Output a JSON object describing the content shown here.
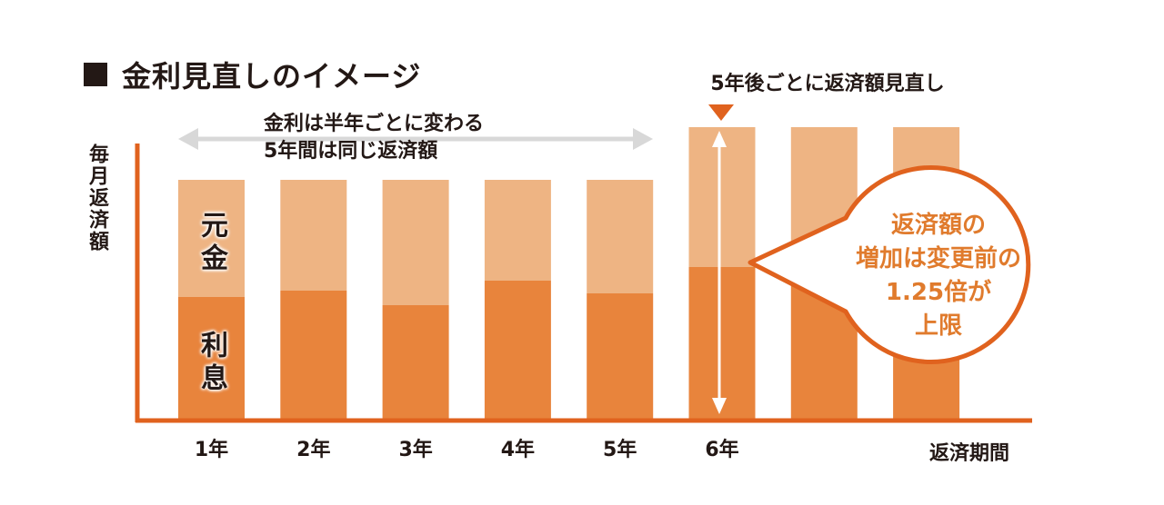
{
  "title": "金利見直しのイメージ",
  "chart_data": {
    "type": "bar",
    "stacked": true,
    "categories": [
      "1年",
      "2年",
      "3年",
      "4年",
      "5年",
      "6年",
      "",
      ""
    ],
    "series": [
      {
        "name": "利息",
        "values": [
          134,
          141,
          125,
          152,
          138,
          167,
          167,
          167
        ]
      },
      {
        "name": "元金",
        "values": [
          129,
          122,
          138,
          111,
          125,
          154,
          154,
          154
        ]
      }
    ],
    "ylabel": "毎月返済額",
    "xlabel": "返済期間",
    "ylim": [
      0,
      330
    ],
    "colors": {
      "interest": "#e8843c",
      "principal": "#eeb483",
      "axis": "#e0621e",
      "arrow": "#d8d8d8",
      "accent": "#e07b2d"
    },
    "annotations": {
      "review_marker": "5年後ごとに返済額見直し",
      "fixed_period": [
        "金利は半年ごとに変わる",
        "5年間は同じ返済額"
      ],
      "bubble": [
        "返済額の",
        "増加は変更前の",
        "1.25倍が",
        "上限"
      ]
    }
  }
}
